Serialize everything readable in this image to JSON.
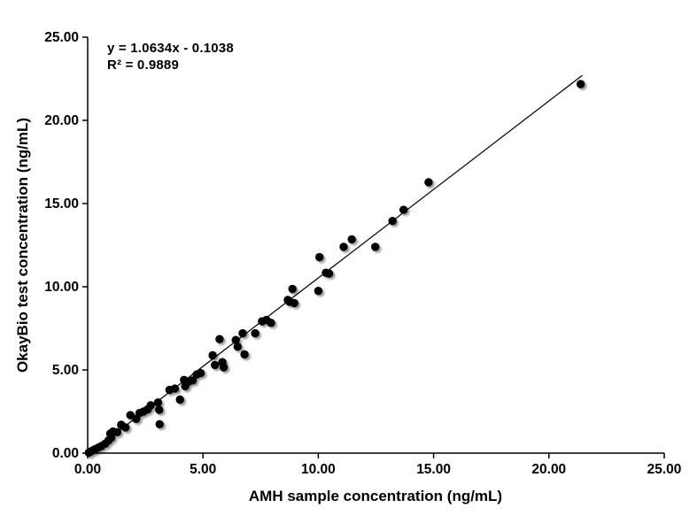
{
  "chart_data": {
    "type": "scatter",
    "title": "",
    "xlabel": "AMH sample concentration (ng/mL)",
    "ylabel": "OkayBio test concentration (ng/mL)",
    "xlim": [
      0,
      25
    ],
    "ylim": [
      0,
      25
    ],
    "grid": false,
    "legend": false,
    "x_ticks": [
      "0.00",
      "5.00",
      "10.00",
      "15.00",
      "20.00",
      "25.00"
    ],
    "y_ticks": [
      "0.00",
      "5.00",
      "10.00",
      "15.00",
      "20.00",
      "25.00"
    ],
    "x_tick_values": [
      0,
      5,
      10,
      15,
      20,
      25
    ],
    "y_tick_values": [
      0,
      5,
      10,
      15,
      20,
      25
    ],
    "annotation": {
      "equation": "y = 1.0634x - 0.1038",
      "r_squared_label": "R² = 0.9889",
      "slope": 1.0634,
      "intercept": -0.1038,
      "r_squared": 0.9889
    },
    "trendline": {
      "slope": 1.0634,
      "intercept": -0.1038,
      "x_start": 0.05,
      "x_end": 21.45
    },
    "marker_color": "#000000",
    "line_color": "#000000",
    "axis_color": "#000000",
    "background_color": "#ffffff",
    "points": [
      [
        0.05,
        0.03
      ],
      [
        0.12,
        0.09
      ],
      [
        0.22,
        0.16
      ],
      [
        0.33,
        0.24
      ],
      [
        0.46,
        0.33
      ],
      [
        0.6,
        0.43
      ],
      [
        0.76,
        0.57
      ],
      [
        0.9,
        0.76
      ],
      [
        1.02,
        0.93
      ],
      [
        0.98,
        1.17
      ],
      [
        1.1,
        1.3
      ],
      [
        1.28,
        1.26
      ],
      [
        1.45,
        1.7
      ],
      [
        1.64,
        1.55
      ],
      [
        1.85,
        2.28
      ],
      [
        2.1,
        2.06
      ],
      [
        2.25,
        2.41
      ],
      [
        2.42,
        2.5
      ],
      [
        2.6,
        2.63
      ],
      [
        2.73,
        2.87
      ],
      [
        3.05,
        3.04
      ],
      [
        3.1,
        2.6
      ],
      [
        3.12,
        1.74
      ],
      [
        3.55,
        3.8
      ],
      [
        3.78,
        3.88
      ],
      [
        4.0,
        3.22
      ],
      [
        4.18,
        4.4
      ],
      [
        4.23,
        4.02
      ],
      [
        4.36,
        4.28
      ],
      [
        4.55,
        4.37
      ],
      [
        4.73,
        4.73
      ],
      [
        4.9,
        4.81
      ],
      [
        5.42,
        5.88
      ],
      [
        5.52,
        5.3
      ],
      [
        5.72,
        6.85
      ],
      [
        5.84,
        5.47
      ],
      [
        5.9,
        5.16
      ],
      [
        6.42,
        6.8
      ],
      [
        6.5,
        6.4
      ],
      [
        6.72,
        7.2
      ],
      [
        6.8,
        5.93
      ],
      [
        7.26,
        7.2
      ],
      [
        7.56,
        7.92
      ],
      [
        7.75,
        8.0
      ],
      [
        7.95,
        7.83
      ],
      [
        8.68,
        9.2
      ],
      [
        8.75,
        9.1
      ],
      [
        8.88,
        9.87
      ],
      [
        8.96,
        9.02
      ],
      [
        10.0,
        9.75
      ],
      [
        10.05,
        11.78
      ],
      [
        10.33,
        10.84
      ],
      [
        10.47,
        10.79
      ],
      [
        11.1,
        12.4
      ],
      [
        11.45,
        12.85
      ],
      [
        12.47,
        12.4
      ],
      [
        13.22,
        13.95
      ],
      [
        13.7,
        14.62
      ],
      [
        14.78,
        16.28
      ],
      [
        21.38,
        22.18
      ]
    ]
  }
}
